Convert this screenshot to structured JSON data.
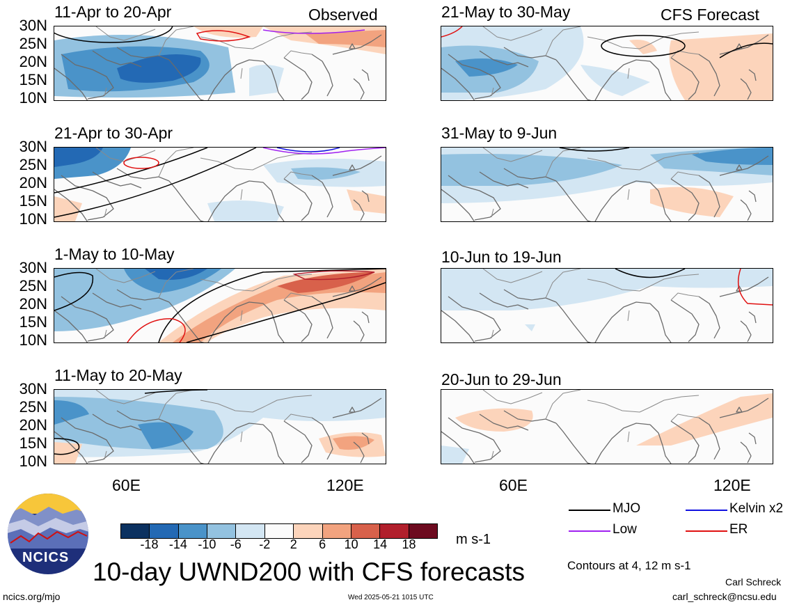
{
  "titles": {
    "observed": "Observed",
    "forecast": "CFS Forecast",
    "main": "10-day UWND200 with CFS forecasts"
  },
  "panels": [
    {
      "period": "11-Apr to 20-Apr"
    },
    {
      "period": "21-Apr to 30-Apr"
    },
    {
      "period": "1-May to 10-May"
    },
    {
      "period": "11-May to 20-May"
    },
    {
      "period": "21-May to 30-May"
    },
    {
      "period": "31-May to 9-Jun"
    },
    {
      "period": "10-Jun to 19-Jun"
    },
    {
      "period": "20-Jun to 29-Jun"
    }
  ],
  "lat_labels": [
    "30N",
    "25N",
    "20N",
    "15N",
    "10N"
  ],
  "lon_labels": [
    "60E",
    "120E"
  ],
  "colorbar": {
    "ticks": [
      "-18",
      "-14",
      "-10",
      "-6",
      "-2",
      "2",
      "6",
      "10",
      "14",
      "18"
    ],
    "units": "m s-1",
    "colors": [
      "#0b3160",
      "#2369b4",
      "#4a93c9",
      "#93c2e0",
      "#d3e6f3",
      "#fbfbfb",
      "#fcd4bb",
      "#f2a37f",
      "#d8614b",
      "#b11f2c",
      "#6d0a1f"
    ]
  },
  "legend": {
    "items": [
      {
        "label": "MJO",
        "color": "#000000"
      },
      {
        "label": "Kelvin x2",
        "color": "#1010e0"
      },
      {
        "label": "Low",
        "color": "#a020f0"
      },
      {
        "label": "ER",
        "color": "#e01010"
      }
    ],
    "contours_note": "Contours at 4, 12 m s-1"
  },
  "footer": {
    "logo_text": "NCICS",
    "url": "ncics.org/mjo",
    "timestamp": "Wed 2025-05-21 1015 UTC",
    "author": "Carl Schreck",
    "email": "carl_schreck@ncsu.edu"
  }
}
